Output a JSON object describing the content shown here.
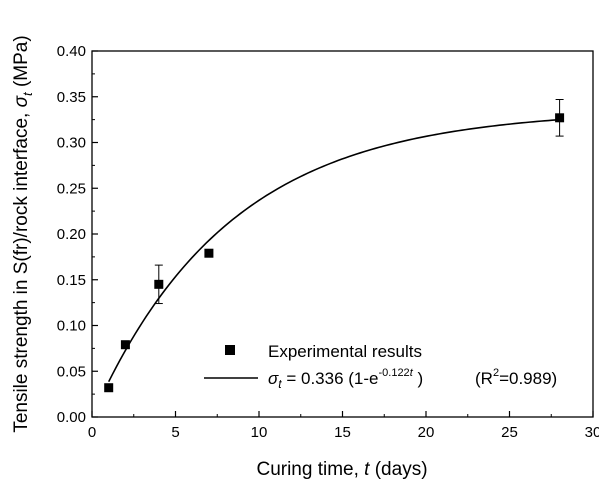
{
  "chart_data": {
    "type": "scatter",
    "xlabel": "Curing time, t (days)",
    "ylabel": "Tensile strength in S(fr)/rock interface, σt (MPa)",
    "xlim": [
      0,
      30
    ],
    "ylim": [
      0,
      0.4
    ],
    "xticks": [
      0,
      5,
      10,
      15,
      20,
      25,
      30
    ],
    "yticks": [
      0.0,
      0.05,
      0.1,
      0.15,
      0.2,
      0.25,
      0.3,
      0.35,
      0.4
    ],
    "grid": false,
    "legend_position": "bottom-right",
    "series": [
      {
        "name": "Experimental results",
        "marker": "square",
        "x": [
          1,
          2,
          4,
          7,
          28
        ],
        "y": [
          0.032,
          0.079,
          0.145,
          0.179,
          0.327
        ],
        "error": [
          0.003,
          0.004,
          0.021,
          0.003,
          0.02
        ]
      },
      {
        "name": "σt = 0.336 (1-e^-0.122t)   (R²=0.989)",
        "kind": "fit-line",
        "model": {
          "a": 0.336,
          "k": 0.122
        },
        "x_range": [
          1,
          28
        ]
      }
    ],
    "legend": {
      "item1": "Experimental results",
      "eq_sigma": "σ",
      "eq_sub": "t",
      "eq_main": " = 0.336 (1-e",
      "eq_exp": "-0.122",
      "eq_exp_var": "t",
      "eq_close": " )",
      "r2_open": "(R",
      "r2_sup": "2",
      "r2_close": "=0.989)"
    },
    "xlabel_parts": {
      "pre": "Curing time, ",
      "var": "t",
      "post": " (days)"
    },
    "ylabel_parts": {
      "pre": "Tensile strength in S(fr)/rock interface, ",
      "sigma": "σ",
      "sub": "t",
      "post": " (MPa)"
    }
  }
}
